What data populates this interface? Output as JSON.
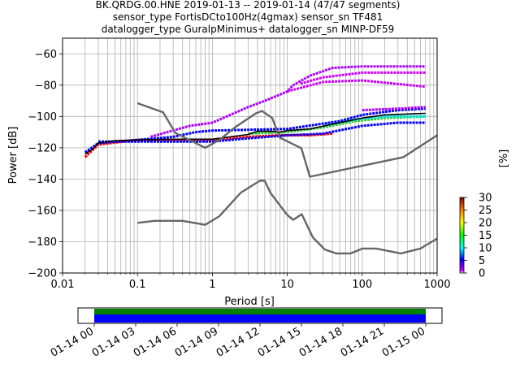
{
  "header": {
    "title_line1": "BK.QRDG.00.HNE   2019-01-13 -- 2019-01-14  (47/47 segments)",
    "title_line2": "sensor_type FortisDCto100Hz(4gmax) sensor_sn TF481",
    "title_line3": "datalogger_type GuralpMinimus+ datalogger_sn MINP-DF59"
  },
  "chart_data": [
    {
      "type": "heatmap",
      "xlabel": "Period [s]",
      "ylabel": "Power [dB]",
      "xscale": "log",
      "xlim": [
        0.01,
        1000
      ],
      "ylim": [
        -200,
        -50
      ],
      "grid": true,
      "xticks": [
        0.01,
        0.1,
        1,
        10,
        100,
        1000
      ],
      "xtick_labels": [
        "0.01",
        "0.1",
        "1",
        "10",
        "100",
        "1000"
      ],
      "yticks": [
        -200,
        -180,
        -160,
        -140,
        -120,
        -100,
        -80,
        -60
      ],
      "ytick_labels": [
        "−200",
        "−180",
        "−160",
        "−140",
        "−120",
        "−100",
        "−80",
        "−60"
      ],
      "colorbar": {
        "label": "[%]",
        "ticks": [
          0,
          5,
          10,
          15,
          20,
          25,
          30
        ],
        "tick_labels": [
          "0",
          "5",
          "10",
          "15",
          "20",
          "25",
          "30"
        ],
        "range": [
          0,
          30
        ]
      },
      "series": [
        {
          "style": "black",
          "points": [
            [
              0.02,
              -124
            ],
            [
              0.025,
              -121
            ],
            [
              0.03,
              -117
            ],
            [
              0.05,
              -115.5
            ],
            [
              0.1,
              -115
            ],
            [
              0.3,
              -114.5
            ],
            [
              1,
              -114.5
            ],
            [
              3,
              -111.5
            ],
            [
              4,
              -109.5
            ],
            [
              6,
              -109.5
            ],
            [
              8,
              -110
            ],
            [
              10,
              -109
            ],
            [
              20,
              -108
            ],
            [
              50,
              -104
            ],
            [
              100,
              -101
            ],
            [
              200,
              -99
            ],
            [
              700,
              -98
            ]
          ]
        },
        {
          "style": "gray-low-noise-model",
          "points": [
            [
              0.1,
              -168
            ],
            [
              0.17,
              -166.7
            ],
            [
              0.4,
              -166.7
            ],
            [
              0.8,
              -169.2
            ],
            [
              1.24,
              -163.7
            ],
            [
              2.4,
              -148.6
            ],
            [
              4.3,
              -141.1
            ],
            [
              5,
              -141.1
            ],
            [
              6,
              -149
            ],
            [
              10,
              -163
            ],
            [
              12,
              -166
            ],
            [
              15.6,
              -162.4
            ],
            [
              21.9,
              -177.2
            ],
            [
              31.6,
              -185
            ],
            [
              45,
              -187.5
            ],
            [
              70,
              -187.5
            ],
            [
              101,
              -184.4
            ],
            [
              154,
              -184.4
            ],
            [
              328,
              -187.5
            ],
            [
              600,
              -184.4
            ],
            [
              1000,
              -178
            ]
          ]
        },
        {
          "style": "gray-high-noise-model",
          "points": [
            [
              0.1,
              -91.5
            ],
            [
              0.22,
              -97.4
            ],
            [
              0.32,
              -110.5
            ],
            [
              0.8,
              -120
            ],
            [
              1.24,
              -115
            ],
            [
              2,
              -107
            ],
            [
              3.8,
              -98
            ],
            [
              4.6,
              -96.5
            ],
            [
              6.3,
              -101
            ],
            [
              7.9,
              -113.5
            ],
            [
              15.4,
              -120.3
            ],
            [
              20,
              -138.5
            ],
            [
              354.8,
              -126
            ],
            [
              1000,
              -112
            ]
          ]
        }
      ],
      "psd_bands": [
        {
          "name": "red-core",
          "color": "#ff0000",
          "points": [
            [
              0.02,
              -126
            ],
            [
              0.03,
              -118
            ],
            [
              0.1,
              -115
            ],
            [
              1,
              -115
            ],
            [
              3,
              -113
            ],
            [
              8,
              -112
            ],
            [
              20,
              -112
            ],
            [
              40,
              -111
            ]
          ]
        },
        {
          "name": "green-spread",
          "color": "#33cc33",
          "points": [
            [
              3,
              -111
            ],
            [
              10,
              -110
            ],
            [
              30,
              -107
            ],
            [
              80,
              -103
            ],
            [
              200,
              -101
            ],
            [
              700,
              -100
            ]
          ]
        },
        {
          "name": "cyan-spread",
          "color": "#00e5e5",
          "points": [
            [
              30,
              -106
            ],
            [
              80,
              -102
            ],
            [
              200,
              -100
            ],
            [
              700,
              -100
            ]
          ]
        },
        {
          "name": "blue-upper",
          "color": "#0000ff",
          "points": [
            [
              0.02,
              -123
            ],
            [
              0.03,
              -117
            ],
            [
              0.1,
              -115
            ],
            [
              0.3,
              -113
            ],
            [
              0.6,
              -110
            ],
            [
              1,
              -109
            ],
            [
              10,
              -108
            ],
            [
              50,
              -103
            ],
            [
              100,
              -99
            ],
            [
              300,
              -96
            ],
            [
              700,
              -95
            ]
          ]
        },
        {
          "name": "blue-lower",
          "color": "#0000ff",
          "points": [
            [
              0.03,
              -116
            ],
            [
              0.3,
              -116
            ],
            [
              1,
              -116
            ],
            [
              3,
              -114
            ],
            [
              10,
              -112
            ],
            [
              30,
              -111
            ],
            [
              100,
              -106
            ],
            [
              300,
              -104
            ],
            [
              700,
              -104
            ]
          ]
        },
        {
          "name": "purple-hi",
          "color": "#aa00ff",
          "points": [
            [
              0.15,
              -113
            ],
            [
              0.5,
              -106
            ],
            [
              1,
              -104
            ],
            [
              3,
              -94
            ],
            [
              5,
              -90
            ],
            [
              8,
              -86
            ],
            [
              10,
              -84
            ],
            [
              12,
              -80
            ],
            [
              20,
              -74
            ],
            [
              40,
              -69
            ],
            [
              100,
              -68
            ],
            [
              700,
              -68
            ]
          ]
        },
        {
          "name": "purple-mid",
          "color": "#cc00ff",
          "points": [
            [
              15,
              -79
            ],
            [
              30,
              -75
            ],
            [
              100,
              -72
            ],
            [
              700,
              -72
            ]
          ]
        },
        {
          "name": "purple-low",
          "color": "#cc00ff",
          "points": [
            [
              10,
              -84
            ],
            [
              30,
              -78
            ],
            [
              100,
              -77
            ],
            [
              700,
              -81
            ]
          ]
        },
        {
          "name": "purple-band",
          "color": "#aa00ff",
          "points": [
            [
              100,
              -96
            ],
            [
              300,
              -95
            ],
            [
              700,
              -94
            ]
          ]
        }
      ]
    },
    {
      "type": "bar",
      "title": "",
      "xlim_labels": [
        "01-14 00",
        "01-14 03",
        "01-14 06",
        "01-14 09",
        "01-14 12",
        "01-14 15",
        "01-14 18",
        "01-14 21",
        "01-15 00"
      ],
      "coverage": [
        {
          "name": "data",
          "color": "#0000ff",
          "start": "01-14 00",
          "end": "01-15 00"
        },
        {
          "name": "data-flag",
          "color": "#008000",
          "start": "01-14 00",
          "end": "01-15 00"
        }
      ]
    }
  ]
}
